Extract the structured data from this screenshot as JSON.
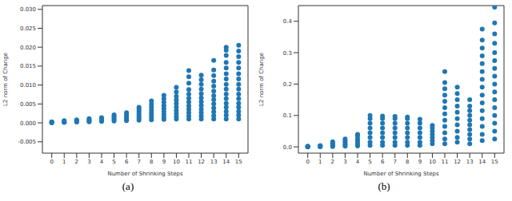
{
  "chart_data": [
    {
      "type": "scatter",
      "caption": "(a)",
      "x_label": "Number of Shrinking Steps",
      "y_label": "L2 norm of Change",
      "color": "#1f77b4",
      "xlim": [
        -0.75,
        15.75
      ],
      "xticks": [
        0,
        1,
        2,
        3,
        4,
        5,
        6,
        7,
        8,
        9,
        10,
        11,
        12,
        13,
        14,
        15
      ],
      "ylim": [
        -0.008,
        0.031
      ],
      "yticks": [
        {
          "value": -0.005,
          "label": "-0.005"
        },
        {
          "value": 0,
          "label": "0.000"
        },
        {
          "value": 0.005,
          "label": "0.005"
        },
        {
          "value": 0.01,
          "label": "0.010"
        },
        {
          "value": 0.015,
          "label": "0.015"
        },
        {
          "value": 0.02,
          "label": "0.020"
        },
        {
          "value": 0.025,
          "label": "0.025"
        },
        {
          "value": 0.03,
          "label": "0.030"
        }
      ],
      "x": [
        0,
        0,
        0,
        0,
        1,
        1,
        1,
        1,
        2,
        2,
        2,
        2,
        3,
        3,
        3,
        3,
        4,
        4,
        4,
        4,
        5,
        5,
        5,
        5,
        5,
        6,
        6,
        6,
        6,
        6,
        7,
        7,
        7,
        7,
        7,
        7,
        7,
        8,
        8,
        8,
        8,
        8,
        8,
        8,
        8,
        9,
        9,
        9,
        9,
        9,
        9,
        9,
        9,
        9,
        10,
        10,
        10,
        10,
        10,
        10,
        10,
        10,
        10,
        10,
        11,
        11,
        11,
        11,
        11,
        11,
        11,
        11,
        11,
        11,
        11,
        11,
        12,
        12,
        12,
        12,
        12,
        12,
        12,
        12,
        12,
        12,
        12,
        12,
        13,
        13,
        13,
        13,
        13,
        13,
        13,
        13,
        13,
        13,
        13,
        13,
        13,
        14,
        14,
        14,
        14,
        14,
        14,
        14,
        14,
        14,
        14,
        14,
        14,
        14,
        14,
        14,
        14,
        15,
        15,
        15,
        15,
        15,
        15,
        15,
        15,
        15,
        15,
        15,
        15,
        15,
        15,
        15,
        15
      ],
      "values": [
        0,
        0.0001,
        0.0002,
        0.0003,
        0.0001,
        0.0002,
        0.0004,
        0.0006,
        0.0002,
        0.0004,
        0.0006,
        0.0008,
        0.0003,
        0.0005,
        0.0008,
        0.0011,
        0.0004,
        0.0007,
        0.001,
        0.0014,
        0.0005,
        0.0009,
        0.0013,
        0.0017,
        0.0021,
        0.0006,
        0.001,
        0.0015,
        0.002,
        0.0027,
        0.0007,
        0.0012,
        0.0018,
        0.0024,
        0.003,
        0.0036,
        0.0041,
        0.0008,
        0.0014,
        0.002,
        0.0027,
        0.0034,
        0.0041,
        0.0049,
        0.0058,
        0.0009,
        0.0015,
        0.0022,
        0.003,
        0.0038,
        0.0046,
        0.0055,
        0.0064,
        0.0073,
        0.001,
        0.0017,
        0.0025,
        0.0033,
        0.0042,
        0.0051,
        0.006,
        0.007,
        0.0082,
        0.0094,
        0.001,
        0.0018,
        0.0027,
        0.0036,
        0.0045,
        0.0055,
        0.0065,
        0.0076,
        0.0088,
        0.0105,
        0.0122,
        0.0138,
        0.001,
        0.0018,
        0.0027,
        0.0036,
        0.0046,
        0.0056,
        0.0066,
        0.0077,
        0.0089,
        0.0102,
        0.0114,
        0.0126,
        0.001,
        0.0019,
        0.0029,
        0.0039,
        0.005,
        0.0061,
        0.0072,
        0.0084,
        0.0097,
        0.011,
        0.0125,
        0.014,
        0.0165,
        0.001,
        0.002,
        0.003,
        0.0041,
        0.0052,
        0.0064,
        0.0076,
        0.0089,
        0.0102,
        0.0116,
        0.013,
        0.0145,
        0.016,
        0.0178,
        0.0192,
        0.02,
        0.001,
        0.002,
        0.003,
        0.0041,
        0.0052,
        0.0064,
        0.0076,
        0.0089,
        0.0102,
        0.0116,
        0.013,
        0.0145,
        0.016,
        0.0175,
        0.019,
        0.0205
      ]
    },
    {
      "type": "scatter",
      "caption": "(b)",
      "x_label": "Number of Shrinking Steps",
      "y_label": "L2 norm of Change",
      "color": "#1f77b4",
      "xlim": [
        -0.75,
        15.75
      ],
      "xticks": [
        0,
        1,
        2,
        3,
        4,
        5,
        6,
        7,
        8,
        9,
        10,
        11,
        12,
        13,
        14,
        15
      ],
      "ylim": [
        -0.02,
        0.45
      ],
      "yticks": [
        {
          "value": 0,
          "label": "0.0"
        },
        {
          "value": 0.1,
          "label": "0.1"
        },
        {
          "value": 0.2,
          "label": "0.2"
        },
        {
          "value": 0.3,
          "label": "0.3"
        },
        {
          "value": 0.4,
          "label": "0.4"
        }
      ],
      "x": [
        0,
        0,
        0,
        0,
        1,
        1,
        1,
        1,
        2,
        2,
        2,
        2,
        2,
        3,
        3,
        3,
        3,
        3,
        4,
        4,
        4,
        4,
        4,
        4,
        5,
        5,
        5,
        5,
        5,
        5,
        5,
        5,
        6,
        6,
        6,
        6,
        6,
        6,
        6,
        6,
        7,
        7,
        7,
        7,
        7,
        7,
        7,
        7,
        8,
        8,
        8,
        8,
        8,
        8,
        8,
        8,
        9,
        9,
        9,
        9,
        9,
        9,
        9,
        10,
        10,
        10,
        10,
        10,
        10,
        10,
        11,
        11,
        11,
        11,
        11,
        11,
        11,
        11,
        11,
        11,
        11,
        11,
        12,
        12,
        12,
        12,
        12,
        12,
        12,
        12,
        12,
        12,
        13,
        13,
        13,
        13,
        13,
        13,
        13,
        13,
        13,
        13,
        14,
        14,
        14,
        14,
        14,
        14,
        14,
        14,
        14,
        14,
        14,
        14,
        14,
        14,
        14,
        15,
        15,
        15,
        15,
        15,
        15,
        15,
        15,
        15,
        15,
        15,
        15,
        15,
        15,
        15,
        15
      ],
      "values": [
        0,
        0.0005,
        0.001,
        0.002,
        0.0005,
        0.001,
        0.002,
        0.004,
        0.001,
        0.004,
        0.008,
        0.012,
        0.016,
        0.002,
        0.007,
        0.013,
        0.019,
        0.025,
        0.003,
        0.01,
        0.018,
        0.026,
        0.035,
        0.04,
        0.005,
        0.015,
        0.03,
        0.045,
        0.06,
        0.075,
        0.09,
        0.1,
        0.005,
        0.015,
        0.03,
        0.045,
        0.06,
        0.075,
        0.09,
        0.098,
        0.005,
        0.015,
        0.03,
        0.045,
        0.06,
        0.075,
        0.09,
        0.097,
        0.005,
        0.015,
        0.03,
        0.045,
        0.06,
        0.075,
        0.09,
        0.095,
        0.005,
        0.015,
        0.03,
        0.045,
        0.06,
        0.075,
        0.088,
        0.01,
        0.02,
        0.03,
        0.04,
        0.05,
        0.06,
        0.068,
        0.01,
        0.025,
        0.045,
        0.065,
        0.085,
        0.105,
        0.125,
        0.145,
        0.165,
        0.185,
        0.205,
        0.24,
        0.015,
        0.03,
        0.05,
        0.07,
        0.09,
        0.11,
        0.13,
        0.15,
        0.17,
        0.19,
        0.01,
        0.025,
        0.04,
        0.055,
        0.07,
        0.085,
        0.1,
        0.115,
        0.13,
        0.15,
        0.02,
        0.04,
        0.065,
        0.09,
        0.115,
        0.14,
        0.165,
        0.19,
        0.215,
        0.24,
        0.265,
        0.29,
        0.315,
        0.34,
        0.375,
        0.025,
        0.05,
        0.075,
        0.1,
        0.125,
        0.15,
        0.175,
        0.2,
        0.225,
        0.25,
        0.275,
        0.3,
        0.33,
        0.36,
        0.395,
        0.445
      ]
    }
  ]
}
